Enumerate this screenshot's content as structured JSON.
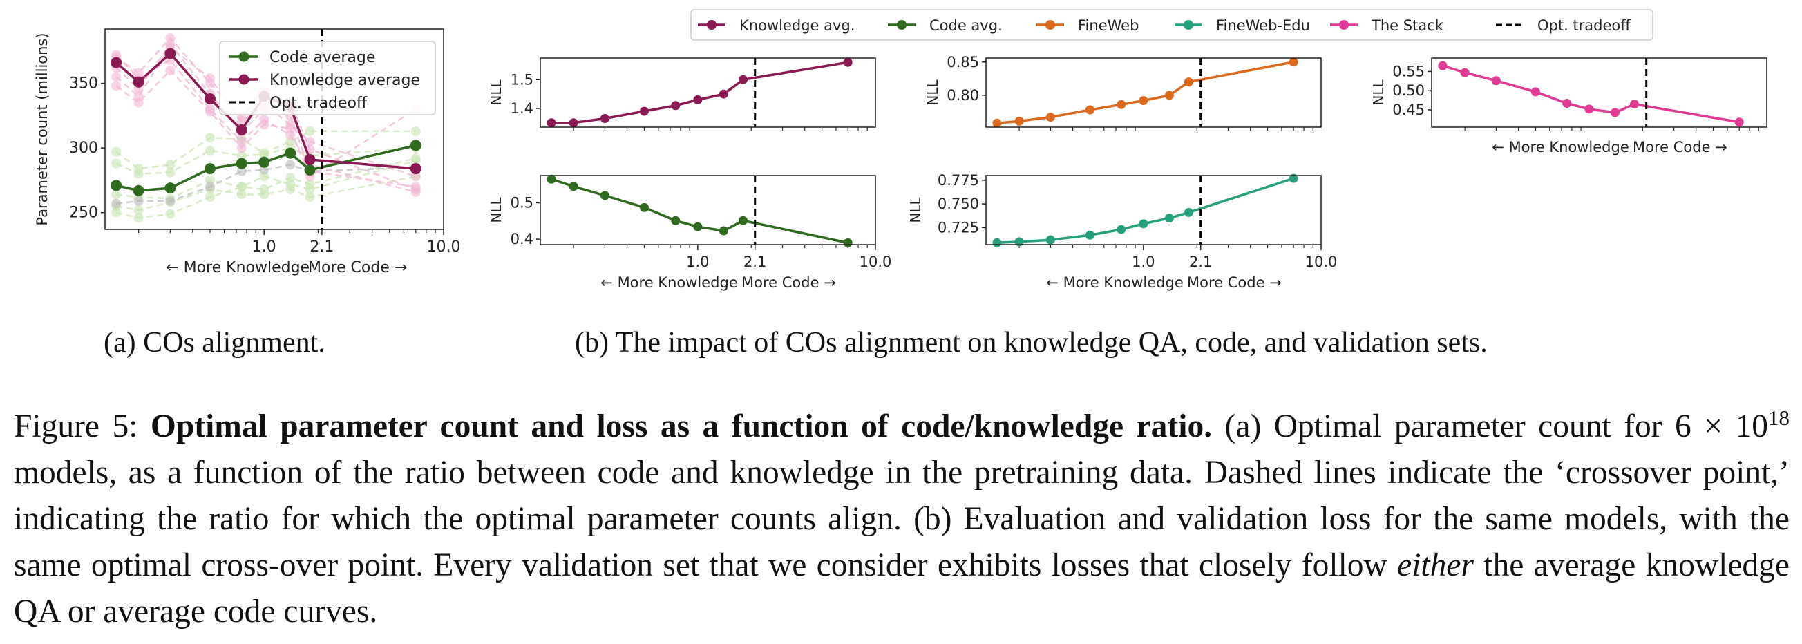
{
  "legend_top": [
    {
      "label": "Knowledge avg.",
      "color": "#8b1a54"
    },
    {
      "label": "Code avg.",
      "color": "#2e6b1d"
    },
    {
      "label": "FineWeb",
      "color": "#db6a1e"
    },
    {
      "label": "FineWeb-Edu",
      "color": "#26a07c"
    },
    {
      "label": "The Stack",
      "color": "#df3a94"
    },
    {
      "label": "Opt. tradeoff",
      "color": "#000000",
      "dashed": true
    }
  ],
  "shared": {
    "x_ticks": [
      "1.0",
      "2.1",
      "10.0"
    ],
    "x_arrow_left": "← More Knowledge",
    "x_arrow_right": "More Code →",
    "opt_tradeoff_x": 2.1
  },
  "chart_data": [
    {
      "id": "a",
      "type": "line",
      "xscale": "log",
      "ylabel": "Parameter count (millions)",
      "xlim": [
        0.13,
        10.0
      ],
      "ylim": [
        237,
        392
      ],
      "yticks": [
        250,
        300,
        350
      ],
      "x": [
        0.15,
        0.2,
        0.3,
        0.5,
        0.75,
        1.0,
        1.4,
        1.8,
        7.0
      ],
      "legend": [
        "Code average",
        "Knowledge average",
        "Opt. tradeoff"
      ],
      "series": [
        {
          "name": "Code average",
          "color": "#2e6b1d",
          "values": [
            271,
            267,
            269,
            284,
            288,
            289,
            296,
            283,
            302
          ]
        },
        {
          "name": "Knowledge average",
          "color": "#8b1a54",
          "values": [
            366,
            351,
            373,
            338,
            314,
            340,
            332,
            291,
            284
          ]
        }
      ],
      "background_series": [
        {
          "color": "#c7e5b0",
          "values": [
            297,
            284,
            287,
            308,
            307,
            296,
            305,
            313,
            313
          ]
        },
        {
          "color": "#c7e5b0",
          "values": [
            288,
            280,
            281,
            298,
            294,
            295,
            300,
            294,
            300
          ]
        },
        {
          "color": "#c7e5b0",
          "values": [
            264,
            262,
            261,
            275,
            270,
            268,
            277,
            272,
            292
          ]
        },
        {
          "color": "#c7e5b0",
          "values": [
            255,
            252,
            258,
            268,
            264,
            264,
            268,
            262,
            278
          ]
        },
        {
          "color": "#c7e5b0",
          "values": [
            250,
            246,
            249,
            262,
            270,
            278,
            272,
            268,
            290
          ]
        },
        {
          "color": "#bbbbbb",
          "values": [
            257,
            259,
            259,
            270,
            282,
            283,
            287,
            282,
            285
          ]
        },
        {
          "color": "#f2b5d3",
          "values": [
            370,
            358,
            385,
            350,
            324,
            344,
            336,
            299,
            268
          ]
        },
        {
          "color": "#f2b5d3",
          "values": [
            362,
            346,
            380,
            342,
            312,
            330,
            325,
            282,
            270
          ]
        },
        {
          "color": "#f2b5d3",
          "values": [
            355,
            340,
            378,
            354,
            320,
            334,
            318,
            305,
            278
          ]
        },
        {
          "color": "#f2b5d3",
          "values": [
            372,
            354,
            368,
            330,
            305,
            322,
            310,
            287,
            266
          ]
        },
        {
          "color": "#f2b5d3",
          "values": [
            348,
            335,
            360,
            328,
            300,
            318,
            315,
            278,
            330
          ]
        }
      ]
    },
    {
      "id": "b1",
      "type": "line",
      "xscale": "log",
      "ylabel": "NLL",
      "name": "Knowledge avg.",
      "color": "#8b1a54",
      "xlim": [
        0.13,
        10.0
      ],
      "ylim": [
        1.335,
        1.575
      ],
      "yticks": [
        "1.4",
        "1.5"
      ],
      "x": [
        0.15,
        0.2,
        0.3,
        0.5,
        0.75,
        1.0,
        1.4,
        1.8,
        7.0
      ],
      "values": [
        1.35,
        1.35,
        1.365,
        1.39,
        1.41,
        1.43,
        1.45,
        1.5,
        1.56
      ]
    },
    {
      "id": "b2",
      "type": "line",
      "xscale": "log",
      "ylabel": "NLL",
      "name": "FineWeb",
      "color": "#db6a1e",
      "xlim": [
        0.13,
        10.0
      ],
      "ylim": [
        0.752,
        0.856
      ],
      "yticks": [
        "0.80",
        "0.85"
      ],
      "x": [
        0.15,
        0.2,
        0.3,
        0.5,
        0.75,
        1.0,
        1.4,
        1.8,
        7.0
      ],
      "values": [
        0.758,
        0.761,
        0.767,
        0.778,
        0.786,
        0.792,
        0.8,
        0.82,
        0.85
      ]
    },
    {
      "id": "b3",
      "type": "line",
      "xscale": "log",
      "ylabel": "NLL",
      "name": "The Stack",
      "color": "#df3a94",
      "xlim": [
        0.13,
        10.0
      ],
      "ylim": [
        0.405,
        0.585
      ],
      "yticks": [
        "0.45",
        "0.50",
        "0.55"
      ],
      "x": [
        0.15,
        0.2,
        0.3,
        0.5,
        0.75,
        1.0,
        1.4,
        1.8,
        7.0
      ],
      "values": [
        0.565,
        0.547,
        0.526,
        0.497,
        0.467,
        0.452,
        0.443,
        0.465,
        0.418
      ]
    },
    {
      "id": "b4",
      "type": "line",
      "xscale": "log",
      "ylabel": "NLL",
      "name": "Code avg.",
      "color": "#2e6b1d",
      "xlim": [
        0.13,
        10.0
      ],
      "ylim": [
        0.385,
        0.575
      ],
      "yticks": [
        "0.4",
        "0.5"
      ],
      "x": [
        0.15,
        0.2,
        0.3,
        0.5,
        0.75,
        1.0,
        1.4,
        1.8,
        7.0
      ],
      "values": [
        0.565,
        0.545,
        0.52,
        0.487,
        0.451,
        0.434,
        0.423,
        0.451,
        0.39
      ]
    },
    {
      "id": "b5",
      "type": "line",
      "xscale": "log",
      "ylabel": "NLL",
      "name": "FineWeb-Edu",
      "color": "#26a07c",
      "xlim": [
        0.13,
        10.0
      ],
      "ylim": [
        0.707,
        0.78
      ],
      "yticks": [
        "0.725",
        "0.750",
        "0.775"
      ],
      "x": [
        0.15,
        0.2,
        0.3,
        0.5,
        0.75,
        1.0,
        1.4,
        1.8,
        7.0
      ],
      "values": [
        0.709,
        0.71,
        0.712,
        0.717,
        0.723,
        0.729,
        0.735,
        0.741,
        0.777
      ]
    }
  ],
  "subcaptions": {
    "a": "(a) COs alignment.",
    "b": "(b) The impact of COs alignment on knowledge QA, code, and validation sets."
  },
  "caption": {
    "prefix": "Figure 5: ",
    "bold": "Optimal parameter count and loss as a function of code/knowledge ratio.",
    "part1": " (a) Optimal parameter count for 6 × 10",
    "sup": "18",
    "part2": " models, as a function of the ratio between code and knowledge in the pretraining data. Dashed lines indicate the ‘crossover point,’ indicating the ratio for which the optimal parameter counts align. (b) Evaluation and validation loss for the same models, with the same optimal cross-over point. Every validation set that we consider exhibits losses that closely follow ",
    "italic": "either",
    "part3": " the average knowledge QA or average code curves."
  }
}
